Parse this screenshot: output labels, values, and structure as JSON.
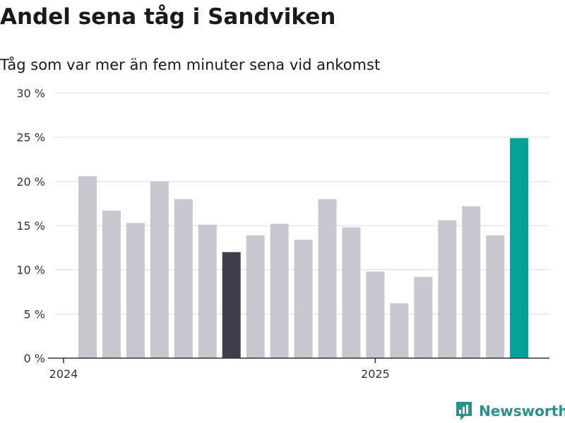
{
  "title": "Andel sena tåg i Sandviken",
  "subtitle": "Tåg som var mer än fem minuter sena vid ankomst",
  "brand": "Newsworthy",
  "colors": {
    "bar": "#c8c7d0",
    "highlight_dark": "#3f3e4a",
    "highlight_accent": "#00a398",
    "grid": "#dddddd",
    "axis": "#333333",
    "brand": "#2b8f8f"
  },
  "chart_data": {
    "type": "bar",
    "x": [
      "2024-01",
      "2024-02",
      "2024-03",
      "2024-04",
      "2024-05",
      "2024-06",
      "2024-07",
      "2024-08",
      "2024-09",
      "2024-10",
      "2024-11",
      "2024-12",
      "2025-01",
      "2025-02",
      "2025-03",
      "2025-04",
      "2025-05",
      "2025-06",
      "2025-07"
    ],
    "values": [
      20.6,
      16.7,
      15.3,
      20.0,
      18.0,
      15.1,
      12.0,
      13.9,
      15.2,
      13.4,
      18.0,
      14.8,
      9.8,
      6.2,
      9.2,
      15.6,
      17.2,
      13.9,
      24.9
    ],
    "highlight": {
      "2024-07": "highlight_dark",
      "2025-07": "highlight_accent"
    },
    "yticks": [
      0,
      5,
      10,
      15,
      20,
      25,
      30
    ],
    "ytick_labels": [
      "0 %",
      "5 %",
      "10 %",
      "15 %",
      "20 %",
      "25 %",
      "30 %"
    ],
    "xtick_labels": [
      {
        "at": "2024-01",
        "label": "2024"
      },
      {
        "at": "2025-01",
        "label": "2025"
      }
    ],
    "ylim": [
      0,
      30
    ],
    "xlabel": "",
    "ylabel": "",
    "grid": true
  }
}
